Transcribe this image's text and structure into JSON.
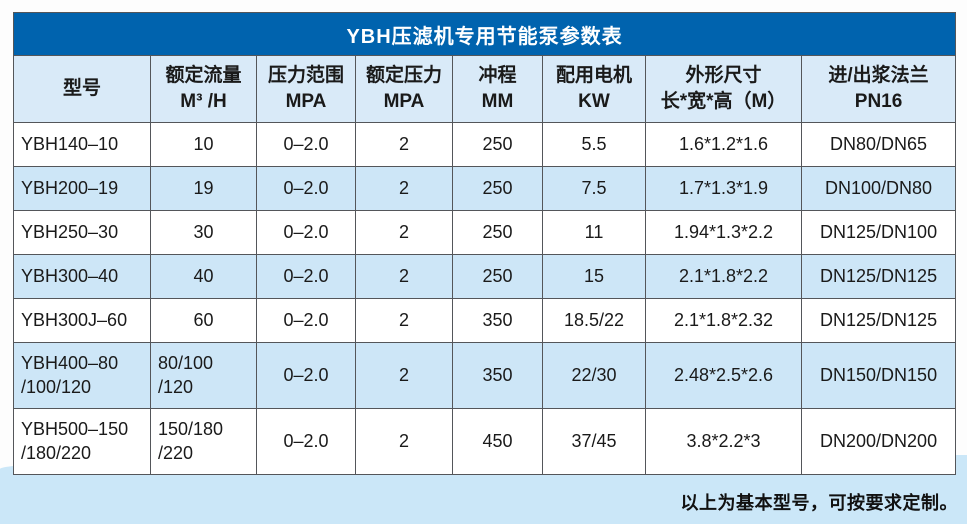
{
  "title": "YBH压滤机专用节能泵参数表",
  "footer_note": "以上为基本型号，可按要求定制。",
  "colors": {
    "title_bar": "#0063ae",
    "header_bg": "#d9eaf8",
    "row_bg": "#ffffff",
    "row_alt_bg": "#cde6f7",
    "border": "#54565a",
    "bottom_band": "#cbe7f8",
    "title_text": "#ffffff",
    "text": "#1a1a1a"
  },
  "table": {
    "columns": [
      {
        "lines": [
          "型号"
        ]
      },
      {
        "lines": [
          "额定流量",
          "M³ /H"
        ]
      },
      {
        "lines": [
          "压力范围",
          "MPA"
        ]
      },
      {
        "lines": [
          "额定压力",
          "MPA"
        ]
      },
      {
        "lines": [
          "冲程",
          "MM"
        ]
      },
      {
        "lines": [
          "配用电机",
          "KW"
        ]
      },
      {
        "lines": [
          "外形尺寸",
          "长*宽*高（M）"
        ]
      },
      {
        "lines": [
          "进/出浆法兰",
          "PN16"
        ]
      }
    ],
    "rows": [
      [
        "YBH140–10",
        "10",
        "0–2.0",
        "2",
        "250",
        "5.5",
        "1.6*1.2*1.6",
        "DN80/DN65"
      ],
      [
        "YBH200–19",
        "19",
        "0–2.0",
        "2",
        "250",
        "7.5",
        "1.7*1.3*1.9",
        "DN100/DN80"
      ],
      [
        "YBH250–30",
        "30",
        "0–2.0",
        "2",
        "250",
        "11",
        "1.94*1.3*2.2",
        "DN125/DN100"
      ],
      [
        "YBH300–40",
        "40",
        "0–2.0",
        "2",
        "250",
        "15",
        "2.1*1.8*2.2",
        "DN125/DN125"
      ],
      [
        "YBH300J–60",
        "60",
        "0–2.0",
        "2",
        "350",
        "18.5/22",
        "2.1*1.8*2.32",
        "DN125/DN125"
      ],
      [
        "YBH400–80\n/100/120",
        "80/100\n/120",
        "0–2.0",
        "2",
        "350",
        "22/30",
        "2.48*2.5*2.6",
        "DN150/DN150"
      ],
      [
        "YBH500–150\n/180/220",
        "150/180\n/220",
        "0–2.0",
        "2",
        "450",
        "37/45",
        "3.8*2.2*3",
        "DN200/DN200"
      ]
    ]
  }
}
